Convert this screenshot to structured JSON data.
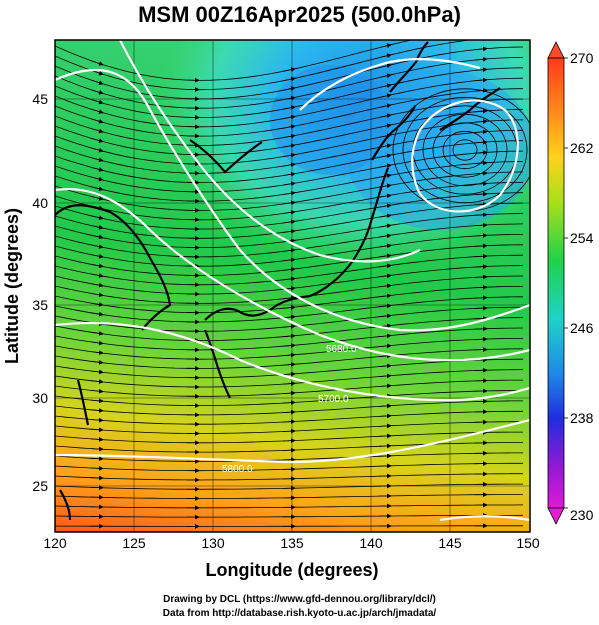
{
  "title": "MSM 00Z16Apr2025 (500.0hPa)",
  "axes": {
    "xlabel": "Longitude (degrees)",
    "ylabel": "Latitude  (degrees)",
    "xticks": [
      "120",
      "125",
      "130",
      "135",
      "140",
      "145",
      "150"
    ],
    "yticks": [
      "25",
      "30",
      "35",
      "40",
      "45"
    ]
  },
  "colorbar": {
    "labels": [
      "270",
      "262",
      "254",
      "246",
      "238",
      "230"
    ]
  },
  "contour_labels": [
    "5700.0",
    "5800.0",
    "5680.0"
  ],
  "credits": {
    "line1": "Drawing by DCL (https://www.gfd-dennou.org/library/dcl/)",
    "line2": "Data from http://database.rish.kyoto-u.ac.jp/arch/jmadata/"
  },
  "colors": {
    "warm": "#ff6a1e",
    "mid": "#3fd23f",
    "cold": "#2aa6ef",
    "contour": "#ffffff",
    "streamline": "#000000"
  },
  "chart_data": {
    "type": "heatmap",
    "x_range": [
      120,
      150
    ],
    "y_range": [
      22.5,
      48
    ],
    "colorbar_range": [
      230,
      270
    ],
    "colorbar_ticks": [
      230,
      238,
      246,
      254,
      262,
      270
    ]
  }
}
